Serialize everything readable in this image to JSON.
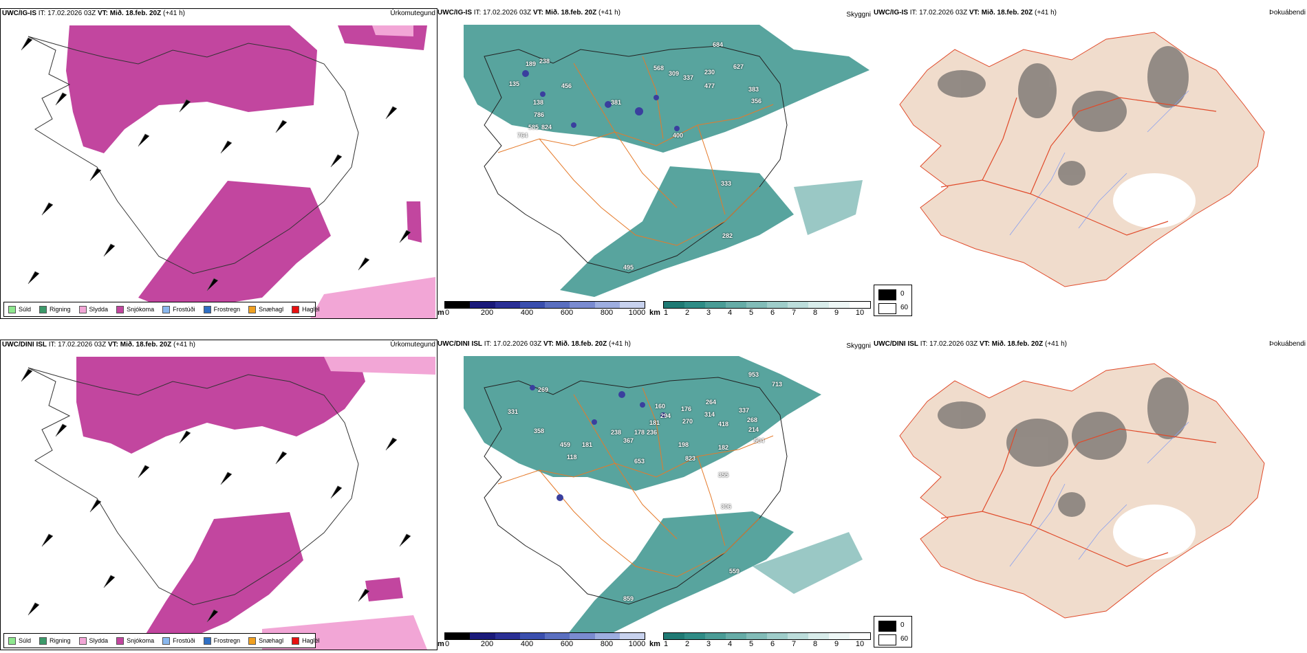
{
  "colors": {
    "snow": "#c2469f",
    "sleet": "#f2a6d6",
    "rain": "#3c9a6a",
    "vis_teal": "#3b948d",
    "ceiling_blue": "#3a3f9e",
    "roads": "#e57a2a",
    "fog_land": "#f0dccc",
    "fog_roads": "#e04a2a"
  },
  "rows": [
    {
      "model": "UWC/IG-IS",
      "it_text": "IT: 17.02.2026 03Z",
      "vt_text": "VT: Mið. 18.feb. 20Z",
      "lead_text": "(+41 h)",
      "ceiling_labels": [
        "189",
        "238",
        "135",
        "456",
        "138",
        "786",
        "585",
        "824",
        "764",
        "568",
        "309",
        "337",
        "230",
        "477",
        "627",
        "383",
        "356",
        "381",
        "400",
        "333",
        "282",
        "495",
        "684"
      ]
    },
    {
      "model": "UWC/DINI ISL",
      "it_text": "IT: 17.02.2026 03Z",
      "vt_text": "VT: Mið. 18.feb. 20Z",
      "lead_text": "(+41 h)",
      "ceiling_labels": [
        "269",
        "331",
        "358",
        "459",
        "118",
        "181",
        "238",
        "367",
        "178",
        "236",
        "160",
        "181",
        "294",
        "176",
        "270",
        "264",
        "314",
        "337",
        "268",
        "418",
        "214",
        "504",
        "198",
        "823",
        "182",
        "355",
        "653",
        "306",
        "559",
        "859",
        "953",
        "713"
      ]
    }
  ],
  "panel_titles": {
    "precip": "Úrkomutegund",
    "visibility": "Skyggni",
    "fog": "Þokuábendi"
  },
  "precip_legend": [
    {
      "label": "Súld",
      "color": "#8fe88f"
    },
    {
      "label": "Rigning",
      "color": "#3c9a6a"
    },
    {
      "label": "Slydda",
      "color": "#f2a6d6"
    },
    {
      "label": "Snjókoma",
      "color": "#c2469f"
    },
    {
      "label": "Frostúði",
      "color": "#8ab8ee"
    },
    {
      "label": "Frostregn",
      "color": "#2f6fc4"
    },
    {
      "label": "Snæhagl",
      "color": "#f0a020"
    },
    {
      "label": "Haglél",
      "color": "#e81010"
    }
  ],
  "ceiling_bar": {
    "unit": "m",
    "ticks": [
      "0",
      "200",
      "400",
      "600",
      "800",
      "1000"
    ],
    "colors": [
      "#000000",
      "#1a1a7a",
      "#2a2f95",
      "#3a4fae",
      "#5a6fc0",
      "#7a8bd0",
      "#9eaee0",
      "#c8d2ee"
    ]
  },
  "visibility_bar": {
    "unit": "km",
    "ticks": [
      "1",
      "2",
      "3",
      "4",
      "5",
      "6",
      "7",
      "8",
      "9",
      "10"
    ],
    "colors": [
      "#1f7a74",
      "#2f8c86",
      "#4a9c96",
      "#66aca7",
      "#82bcb8",
      "#9fcdca",
      "#bcdddb",
      "#d8ecea",
      "#eef7f6",
      "#ffffff"
    ]
  },
  "fog_key": {
    "top_value": "0",
    "bottom_value": "60"
  }
}
